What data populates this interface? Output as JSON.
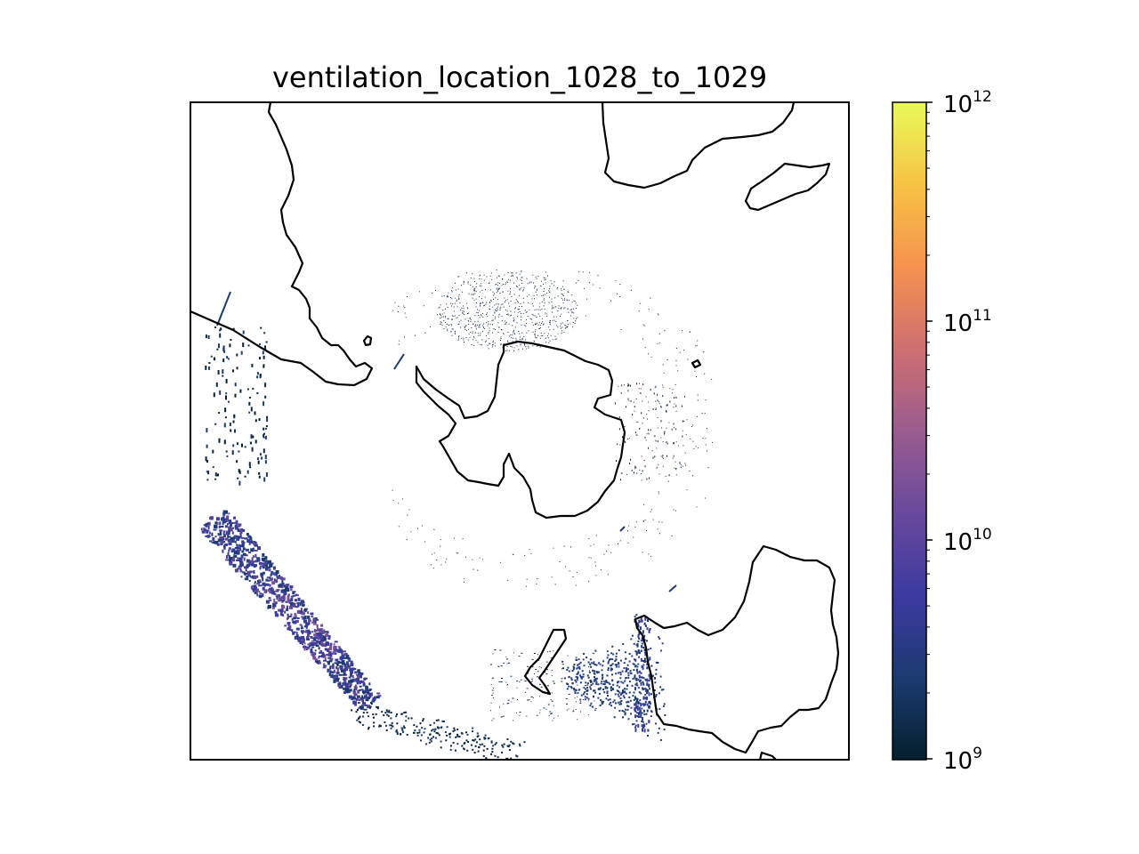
{
  "figure": {
    "title": "ventilation_location_1028_to_1029",
    "projection": "south-polar stereographic",
    "colormap_name": "thermal",
    "scale": "log",
    "colorbar": {
      "min": 1000000000,
      "max": 1000000000000,
      "major_ticks": [
        {
          "base": "10",
          "exp": "12"
        },
        {
          "base": "10",
          "exp": "11"
        },
        {
          "base": "10",
          "exp": "10"
        },
        {
          "base": "10",
          "exp": "9"
        }
      ],
      "colors": [
        "#04202d",
        "#1b3a6e",
        "#3b3aa0",
        "#6a4a9c",
        "#9a5c8e",
        "#cd6e72",
        "#f5924f",
        "#f6c543",
        "#e8fa5b"
      ]
    },
    "features": [
      "Antarctica",
      "South America",
      "Africa",
      "Australia",
      "New Zealand",
      "Tasmania"
    ],
    "colors": {
      "coastline": "#000000",
      "background": "#ffffff"
    }
  }
}
